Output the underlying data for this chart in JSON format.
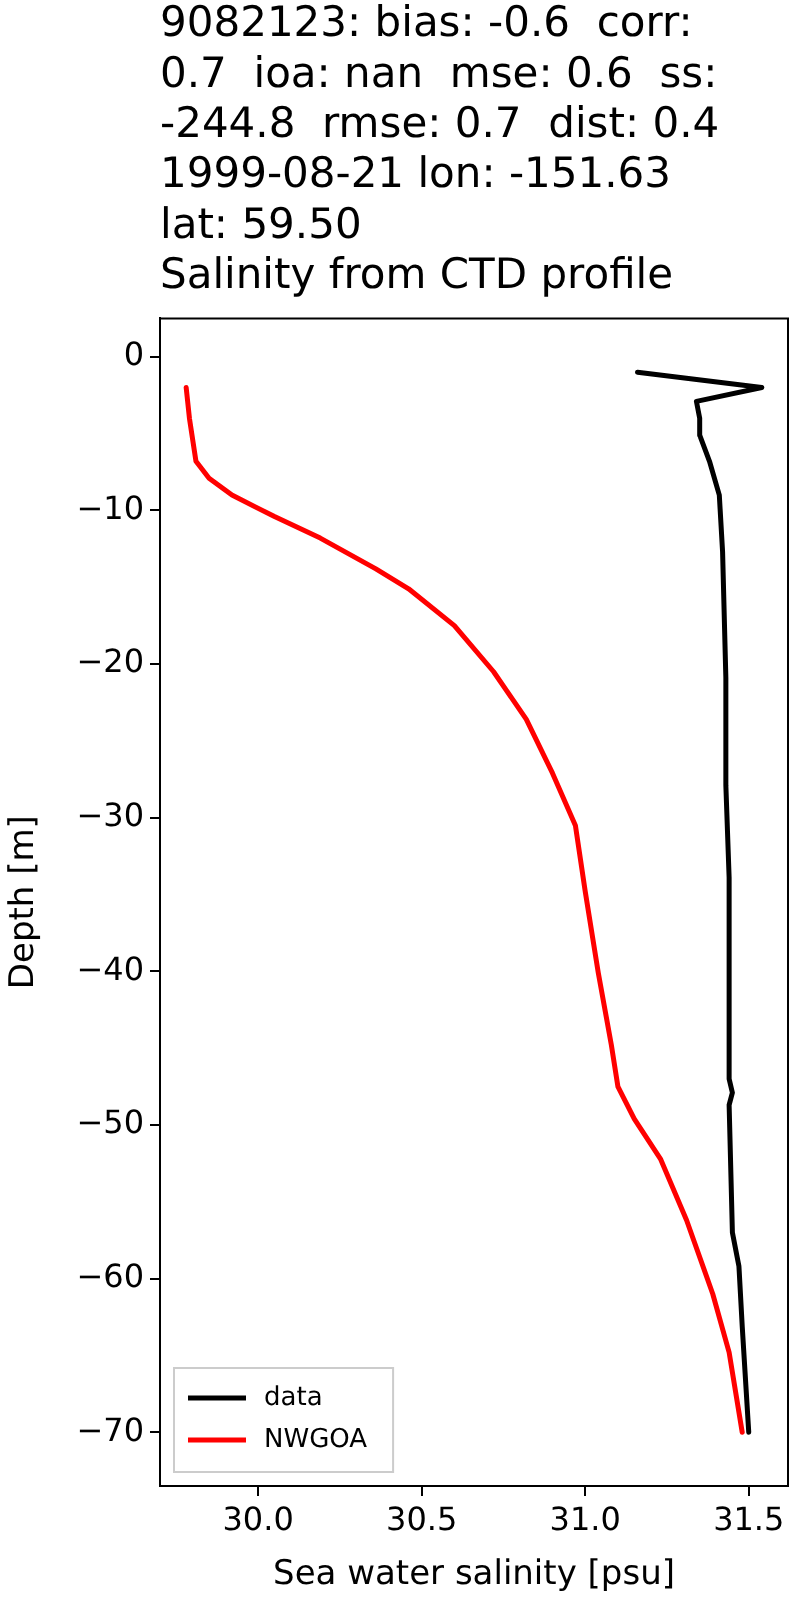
{
  "chart_data": {
    "type": "line",
    "title": "9082123: bias: -0.6  corr: 0.7  ioa: nan  mse: 0.6  ss: -244.8  rmse: 0.7  dist: 0.4 1999-08-21 lon: -151.63 lat: 59.50\nSalinity from CTD profile",
    "xlabel": "Sea water salinity [psu]",
    "ylabel": "Depth [m]",
    "series": [
      {
        "name": "data",
        "color": "#000000",
        "x": [
          31.16,
          31.54,
          31.34,
          31.35,
          31.35,
          31.38,
          31.41,
          31.42,
          31.43,
          31.43,
          31.44,
          31.44,
          31.45,
          31.44,
          31.45,
          31.47,
          31.48,
          31.5
        ],
        "values": [
          -1.0,
          -2.0,
          -2.9,
          -4.0,
          -5.1,
          -6.8,
          -9.0,
          -12.7,
          -20.9,
          -27.9,
          -33.9,
          -47,
          -47.9,
          -48.7,
          -57,
          -59.2,
          -63.1,
          -70
        ]
      },
      {
        "name": "NWGOA",
        "color": "#ff0000",
        "x": [
          29.78,
          29.79,
          29.81,
          29.85,
          29.92,
          30.05,
          30.19,
          30.36,
          30.46,
          30.6,
          30.72,
          30.82,
          30.9,
          30.97,
          31.0,
          31.04,
          31.08,
          31.1,
          31.15,
          31.23,
          31.31,
          31.39,
          31.44,
          31.48
        ],
        "values": [
          -2,
          -4,
          -6.8,
          -7.9,
          -9.0,
          -10.4,
          -11.8,
          -13.8,
          -15.1,
          -17.5,
          -20.5,
          -23.6,
          -27.1,
          -30.5,
          -34.8,
          -40.1,
          -44.8,
          -47.5,
          -49.6,
          -52.2,
          -56.2,
          -61,
          -64.8,
          -70
        ]
      }
    ],
    "xlim": [
      29.7,
      31.62
    ],
    "ylim": [
      -73.5,
      2.5
    ],
    "xticks": [
      {
        "value": 30,
        "label": "30.0"
      },
      {
        "value": 30.5,
        "label": "30.5"
      },
      {
        "value": 31,
        "label": "31.0"
      },
      {
        "value": 31.5,
        "label": "31.5"
      }
    ],
    "yticks": [
      {
        "value": 0,
        "label": "0"
      },
      {
        "value": -10,
        "label": "−10"
      },
      {
        "value": -20,
        "label": "−20"
      },
      {
        "value": -30,
        "label": "−30"
      },
      {
        "value": -40,
        "label": "−40"
      },
      {
        "value": -50,
        "label": "−50"
      },
      {
        "value": -60,
        "label": "−60"
      },
      {
        "value": -70,
        "label": "−70"
      }
    ],
    "grid": false,
    "legend": "bottom left",
    "marker": "none",
    "line_style": "solid"
  }
}
